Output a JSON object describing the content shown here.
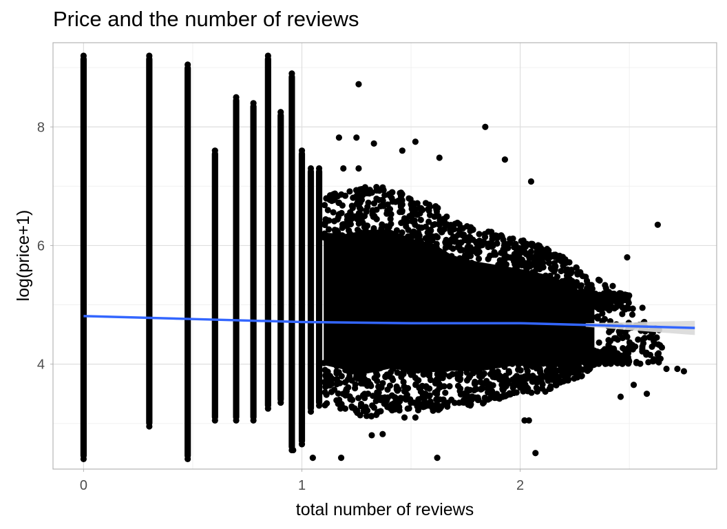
{
  "chart_data": {
    "type": "scatter",
    "title": "Price and the number of reviews",
    "xlabel": "total number of reviews",
    "ylabel": "log(price+1)",
    "xlim": [
      -0.14,
      2.9
    ],
    "ylim": [
      2.23,
      9.42
    ],
    "x_ticks": [
      0,
      1,
      2
    ],
    "x_tick_labels": [
      "0",
      "1",
      "2"
    ],
    "y_ticks": [
      4,
      6,
      8
    ],
    "y_tick_labels": [
      "4",
      "6",
      "8"
    ],
    "grid": true,
    "point_color": "#000000",
    "trend_color": "#3366FF",
    "ribbon_color": "#d9d9d9",
    "columns": [
      {
        "x": 0.0,
        "ymin": 2.4,
        "ymax": 9.2
      },
      {
        "x": 0.301,
        "ymin": 2.95,
        "ymax": 9.2
      },
      {
        "x": 0.477,
        "ymin": 2.4,
        "ymax": 9.05
      },
      {
        "x": 0.602,
        "ymin": 3.05,
        "ymax": 7.6
      },
      {
        "x": 0.699,
        "ymin": 3.05,
        "ymax": 8.5
      },
      {
        "x": 0.778,
        "ymin": 3.05,
        "ymax": 8.4
      },
      {
        "x": 0.845,
        "ymin": 3.25,
        "ymax": 9.2
      },
      {
        "x": 0.903,
        "ymin": 3.35,
        "ymax": 8.25
      },
      {
        "x": 0.954,
        "ymin": 2.55,
        "ymax": 8.9
      },
      {
        "x": 1.0,
        "ymin": 2.65,
        "ymax": 7.6
      },
      {
        "x": 1.041,
        "ymin": 3.2,
        "ymax": 7.3
      },
      {
        "x": 1.079,
        "ymin": 3.3,
        "ymax": 7.3
      }
    ],
    "dense_cloud": [
      [
        1.1,
        3.3,
        6.9
      ],
      [
        1.2,
        3.2,
        6.9
      ],
      [
        1.3,
        3.1,
        7.0
      ],
      [
        1.4,
        3.2,
        7.0
      ],
      [
        1.5,
        3.2,
        6.8
      ],
      [
        1.6,
        3.2,
        6.7
      ],
      [
        1.7,
        3.3,
        6.4
      ],
      [
        1.8,
        3.3,
        6.3
      ],
      [
        1.9,
        3.4,
        6.2
      ],
      [
        2.0,
        3.5,
        6.1
      ],
      [
        2.1,
        3.5,
        6.0
      ],
      [
        2.2,
        3.7,
        5.8
      ],
      [
        2.3,
        3.8,
        5.5
      ],
      [
        2.35,
        4.0,
        5.2
      ]
    ],
    "outliers": [
      [
        1.26,
        8.72
      ],
      [
        1.84,
        8.0
      ],
      [
        1.17,
        7.82
      ],
      [
        1.25,
        7.82
      ],
      [
        1.52,
        7.75
      ],
      [
        1.46,
        7.6
      ],
      [
        1.33,
        7.72
      ],
      [
        1.63,
        7.48
      ],
      [
        1.93,
        7.45
      ],
      [
        1.19,
        7.3
      ],
      [
        1.26,
        7.3
      ],
      [
        2.05,
        7.08
      ],
      [
        2.63,
        6.35
      ],
      [
        2.49,
        5.8
      ],
      [
        2.6,
        4.55
      ],
      [
        2.56,
        4.95
      ],
      [
        2.67,
        3.92
      ],
      [
        2.72,
        3.92
      ],
      [
        2.75,
        3.88
      ],
      [
        2.58,
        3.5
      ],
      [
        2.52,
        3.65
      ],
      [
        2.46,
        3.45
      ],
      [
        2.07,
        2.5
      ],
      [
        1.62,
        2.42
      ],
      [
        1.32,
        2.8
      ],
      [
        1.37,
        2.82
      ],
      [
        1.18,
        2.42
      ],
      [
        1.05,
        2.42
      ],
      [
        0.96,
        2.55
      ],
      [
        1.0,
        2.65
      ],
      [
        2.02,
        3.05
      ],
      [
        2.04,
        3.05
      ],
      [
        1.52,
        3.1
      ],
      [
        1.47,
        3.1
      ]
    ],
    "trend_line": {
      "x": [
        0.0,
        0.5,
        1.0,
        1.5,
        2.0,
        2.3,
        2.6,
        2.8
      ],
      "y": [
        4.81,
        4.76,
        4.71,
        4.69,
        4.69,
        4.66,
        4.63,
        4.61
      ],
      "ribbon_x": [
        2.3,
        2.8
      ],
      "ribbon_half_width": [
        0.03,
        0.12
      ]
    }
  }
}
